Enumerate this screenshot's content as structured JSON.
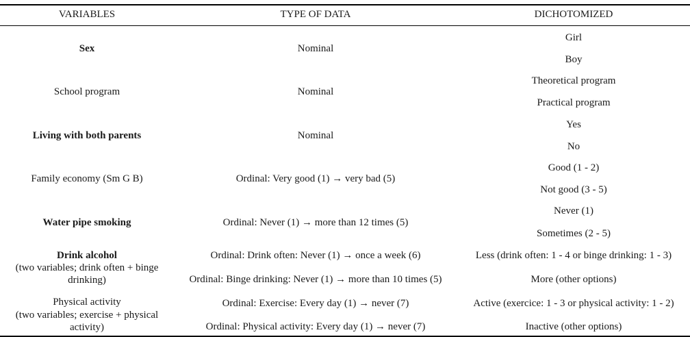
{
  "table": {
    "headers": [
      "VARIABLES",
      "TYPE OF DATA",
      "DICHOTOMIZED"
    ],
    "rows": [
      {
        "variable": "Sex",
        "variable_bold": true,
        "type": "Nominal",
        "dich": [
          "Girl",
          "Boy"
        ]
      },
      {
        "variable": "School program",
        "variable_bold": false,
        "type": "Nominal",
        "dich": [
          "Theoretical program",
          "Practical program"
        ]
      },
      {
        "variable": "Living with both parents",
        "variable_bold": true,
        "type": "Nominal",
        "dich": [
          "Yes",
          "No"
        ]
      },
      {
        "variable": "Family economy (Sm G B)",
        "variable_bold": false,
        "type": "Ordinal: Very good (1) → very bad (5)",
        "dich": [
          "Good (1 - 2)",
          "Not good (3 - 5)"
        ]
      },
      {
        "variable": "Water pipe smoking",
        "variable_bold": true,
        "type": "Ordinal: Never (1) → more than 12 times (5)",
        "dich": [
          "Never (1)",
          "Sometimes (2 - 5)"
        ]
      },
      {
        "variable": "Drink alcohol",
        "variable_sub": [
          "(two variables; drink often + binge",
          "drinking)"
        ],
        "variable_bold": true,
        "type_lines": [
          "Ordinal: Drink often: Never (1) → once a week (6)",
          "Ordinal: Binge drinking: Never (1) → more than 10 times (5)"
        ],
        "dich": [
          "Less (drink often: 1 - 4 or binge drinking: 1 - 3)",
          "More (other options)"
        ]
      },
      {
        "variable": "Physical activity",
        "variable_sub": [
          "(two variables; exercise + physical",
          "activity)"
        ],
        "variable_bold": false,
        "type_lines": [
          "Ordinal: Exercise: Every day (1) → never (7)",
          "Ordinal: Physical activity: Every day (1) → never (7)"
        ],
        "dich": [
          "Active (exercice: 1 - 3 or physical activity: 1 - 2)",
          "Inactive (other options)"
        ]
      }
    ]
  }
}
